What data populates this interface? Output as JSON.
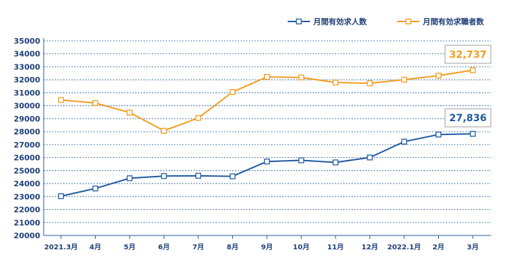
{
  "chart_data": {
    "type": "line",
    "categories": [
      "2021.3月",
      "4月",
      "5月",
      "6月",
      "7月",
      "8月",
      "9月",
      "10月",
      "11月",
      "12月",
      "2022.1月",
      "2月",
      "3月"
    ],
    "series": [
      {
        "name": "月間有効求人数",
        "color": "#1f5aa0",
        "values": [
          23030,
          23620,
          24410,
          24580,
          24600,
          24560,
          25700,
          25790,
          25630,
          26010,
          27230,
          27780,
          27836
        ],
        "callout": "27,836"
      },
      {
        "name": "月間有効求職者数",
        "color": "#f39c1f",
        "values": [
          30440,
          30210,
          29470,
          28070,
          29060,
          31060,
          32220,
          32180,
          31790,
          31730,
          32010,
          32320,
          32737
        ],
        "callout": "32,737"
      }
    ],
    "ylim": [
      20000,
      35000
    ],
    "yticks": [
      "20000",
      "21000",
      "22000",
      "23000",
      "24000",
      "25000",
      "26000",
      "27000",
      "28000",
      "29000",
      "30000",
      "31000",
      "32000",
      "33000",
      "34000",
      "35000"
    ],
    "grid": true,
    "legend_position": "top-right"
  }
}
